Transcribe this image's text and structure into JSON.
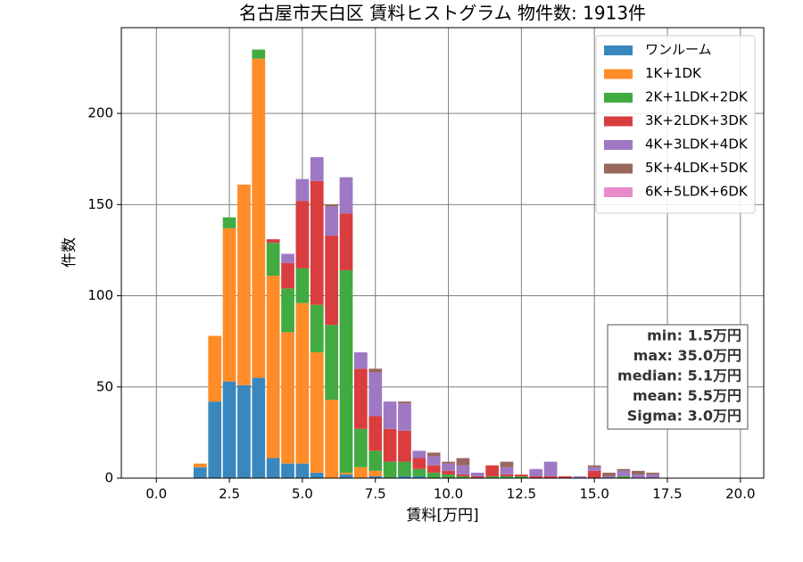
{
  "chart_data": {
    "type": "histogram",
    "title": "名古屋市天白区 賃料ヒストグラム 物件数: 1913件",
    "xlabel": "賃料[万円]",
    "ylabel": "件数",
    "bins": [
      1.25,
      1.75,
      2.25,
      2.75,
      3.25,
      3.75,
      4.25,
      4.75,
      5.25,
      5.75,
      6.25,
      6.75,
      7.25,
      7.75,
      8.25,
      8.75,
      9.25,
      9.75,
      10.25,
      10.75,
      11.25,
      11.75,
      12.25,
      12.75,
      13.25,
      13.75,
      14.25,
      14.75,
      15.25,
      15.75,
      16.25,
      16.75,
      17.25
    ],
    "stacked": true,
    "grid": true,
    "legend": "upper right",
    "xlim": [
      -1.2,
      20.8
    ],
    "ylim": [
      0,
      247
    ],
    "xticks": [
      {
        "value": 0,
        "label": "0.0"
      },
      {
        "value": 2.5,
        "label": "2.5"
      },
      {
        "value": 5,
        "label": "5.0"
      },
      {
        "value": 7.5,
        "label": "7.5"
      },
      {
        "value": 10,
        "label": "10.0"
      },
      {
        "value": 12.5,
        "label": "12.5"
      },
      {
        "value": 15,
        "label": "15.0"
      },
      {
        "value": 17.5,
        "label": "17.5"
      },
      {
        "value": 20,
        "label": "20.0"
      }
    ],
    "yticks": [
      0,
      50,
      100,
      150,
      200
    ],
    "series": [
      {
        "name": "ワンルーム",
        "color": "#3a87bd",
        "values": [
          6,
          42,
          53,
          51,
          55,
          11,
          8,
          8,
          3,
          0,
          2,
          0,
          1,
          0,
          1,
          1,
          0,
          0,
          0,
          0,
          0,
          0,
          0,
          0,
          0,
          0,
          0,
          0,
          0,
          0,
          0,
          0
        ]
      },
      {
        "name": "1K+1DK",
        "color": "#ff8c27",
        "values": [
          2,
          36,
          84,
          110,
          175,
          100,
          72,
          88,
          66,
          43,
          1,
          6,
          3,
          0,
          0,
          0,
          0,
          0,
          0,
          0,
          0,
          0,
          0,
          0,
          0,
          0,
          0,
          0,
          0,
          0,
          0,
          0
        ]
      },
      {
        "name": "2K+1LDK+2DK",
        "color": "#41ab41",
        "values": [
          0,
          0,
          6,
          0,
          5,
          18,
          24,
          19,
          26,
          41,
          111,
          21,
          11,
          9,
          8,
          4,
          3,
          2,
          1,
          0,
          1,
          1,
          1,
          0,
          0,
          0,
          0,
          0,
          0,
          1,
          0,
          0
        ]
      },
      {
        "name": "3K+2LDK+3DK",
        "color": "#da3d3e",
        "values": [
          0,
          0,
          0,
          0,
          0,
          2,
          14,
          37,
          68,
          49,
          31,
          33,
          19,
          18,
          17,
          6,
          4,
          2,
          1,
          1,
          6,
          1,
          1,
          1,
          1,
          1,
          0,
          4,
          0,
          0,
          0,
          0
        ]
      },
      {
        "name": "4K+3LDK+4DK",
        "color": "#9f78c4",
        "values": [
          0,
          0,
          0,
          0,
          0,
          0,
          5,
          12,
          13,
          16,
          20,
          9,
          24,
          15,
          15,
          4,
          5,
          4,
          5,
          2,
          0,
          4,
          0,
          4,
          8,
          0,
          1,
          2,
          1,
          3,
          2,
          2
        ]
      },
      {
        "name": "5K+4LDK+5DK",
        "color": "#98675e",
        "values": [
          0,
          0,
          0,
          0,
          0,
          0,
          0,
          0,
          0,
          1,
          0,
          0,
          2,
          0,
          1,
          0,
          2,
          1,
          4,
          0,
          0,
          3,
          0,
          0,
          0,
          0,
          0,
          1,
          2,
          1,
          2,
          1
        ]
      },
      {
        "name": "6K+5LDK+6DK",
        "color": "#e78bcb",
        "values": [
          0,
          0,
          0,
          0,
          0,
          0,
          0,
          0,
          0,
          0,
          0,
          0,
          0,
          0,
          0,
          0,
          0,
          0,
          0,
          0,
          0,
          0,
          0,
          0,
          0,
          0,
          0,
          0,
          0,
          0,
          0,
          0
        ]
      }
    ],
    "stats": [
      "min: 1.5万円",
      "max: 35.0万円",
      "median: 5.1万円",
      "mean: 5.5万円",
      "Sigma: 3.0万円"
    ]
  }
}
